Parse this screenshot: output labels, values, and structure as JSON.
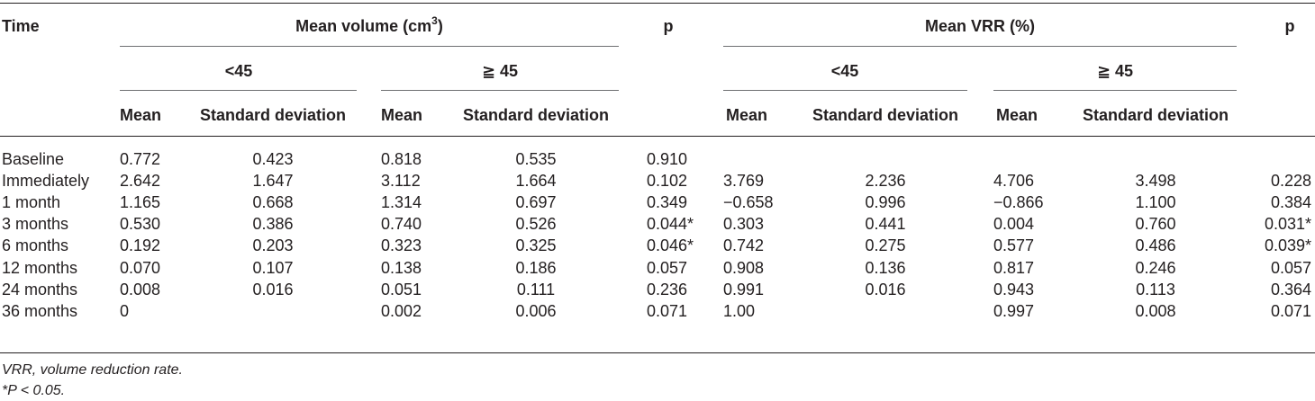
{
  "header": {
    "time": "Time",
    "mean_volume": "Mean volume (cm",
    "mean_volume_sup": "3",
    "mean_volume_close": ")",
    "p1": "p",
    "mean_vrr": "Mean VRR (%)",
    "p2": "p",
    "lt45": "<45",
    "ge45": "≧ 45",
    "mean": "Mean",
    "sd": "Standard deviation"
  },
  "rows": [
    {
      "time": "Baseline",
      "v_lt_mean": "0.772",
      "v_lt_sd": "0.423",
      "v_ge_mean": "0.818",
      "v_ge_sd": "0.535",
      "p1": "0.910",
      "r_lt_mean": "",
      "r_lt_sd": "",
      "r_ge_mean": "",
      "r_ge_sd": "",
      "p2": ""
    },
    {
      "time": "Immediately",
      "v_lt_mean": "2.642",
      "v_lt_sd": "1.647",
      "v_ge_mean": "3.112",
      "v_ge_sd": "1.664",
      "p1": "0.102",
      "r_lt_mean": "3.769",
      "r_lt_sd": "2.236",
      "r_ge_mean": "4.706",
      "r_ge_sd": "3.498",
      "p2": "0.228"
    },
    {
      "time": "1 month",
      "v_lt_mean": "1.165",
      "v_lt_sd": "0.668",
      "v_ge_mean": "1.314",
      "v_ge_sd": "0.697",
      "p1": "0.349",
      "r_lt_mean": "−0.658",
      "r_lt_sd": "0.996",
      "r_ge_mean": "−0.866",
      "r_ge_sd": "1.100",
      "p2": "0.384"
    },
    {
      "time": "3 months",
      "v_lt_mean": "0.530",
      "v_lt_sd": "0.386",
      "v_ge_mean": "0.740",
      "v_ge_sd": "0.526",
      "p1": "0.044*",
      "r_lt_mean": "0.303",
      "r_lt_sd": "0.441",
      "r_ge_mean": "0.004",
      "r_ge_sd": "0.760",
      "p2": "0.031*"
    },
    {
      "time": "6 months",
      "v_lt_mean": "0.192",
      "v_lt_sd": "0.203",
      "v_ge_mean": "0.323",
      "v_ge_sd": "0.325",
      "p1": "0.046*",
      "r_lt_mean": "0.742",
      "r_lt_sd": "0.275",
      "r_ge_mean": "0.577",
      "r_ge_sd": "0.486",
      "p2": "0.039*"
    },
    {
      "time": "12 months",
      "v_lt_mean": "0.070",
      "v_lt_sd": "0.107",
      "v_ge_mean": "0.138",
      "v_ge_sd": "0.186",
      "p1": "0.057",
      "r_lt_mean": "0.908",
      "r_lt_sd": "0.136",
      "r_ge_mean": "0.817",
      "r_ge_sd": "0.246",
      "p2": "0.057"
    },
    {
      "time": "24 months",
      "v_lt_mean": "0.008",
      "v_lt_sd": "0.016",
      "v_ge_mean": "0.051",
      "v_ge_sd": "0.111",
      "p1": "0.236",
      "r_lt_mean": "0.991",
      "r_lt_sd": "0.016",
      "r_ge_mean": "0.943",
      "r_ge_sd": "0.113",
      "p2": "0.364"
    },
    {
      "time": "36 months",
      "v_lt_mean": "0",
      "v_lt_sd": "",
      "v_ge_mean": "0.002",
      "v_ge_sd": "0.006",
      "p1": "0.071",
      "r_lt_mean": "1.00",
      "r_lt_sd": "",
      "r_ge_mean": "0.997",
      "r_ge_sd": "0.008",
      "p2": "0.071"
    }
  ],
  "footnotes": {
    "abbrev": "VRR, volume reduction rate.",
    "sig": "*P < 0.05."
  }
}
